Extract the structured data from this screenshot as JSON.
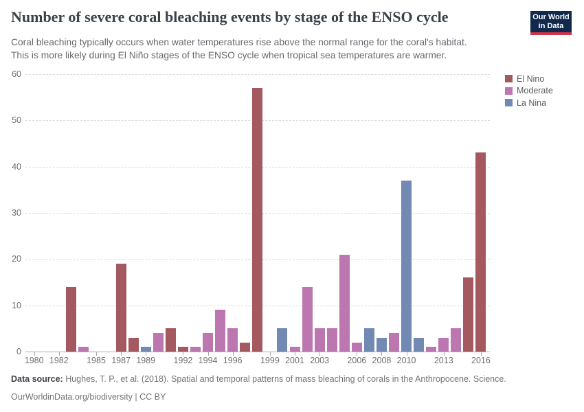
{
  "header": {
    "title": "Number of severe coral bleaching events by stage of the ENSO cycle",
    "subtitle_line1": "Coral bleaching typically occurs when water temperatures rise above the normal range for the coral's habitat.",
    "subtitle_line2": "This is more likely during El Niño stages of the ENSO cycle when tropical sea temperatures are warmer."
  },
  "logo": {
    "line1": "Our World",
    "line2": "in Data",
    "bg_color": "#12294E",
    "accent_color": "#D1334A"
  },
  "legend": {
    "items": [
      {
        "label": "El Nino",
        "color": "#A4585F"
      },
      {
        "label": "Moderate",
        "color": "#BC76B0"
      },
      {
        "label": "La Nina",
        "color": "#7289B3"
      }
    ]
  },
  "chart_data": {
    "type": "bar",
    "title": "Number of severe coral bleaching events by stage of the ENSO cycle",
    "xlabel": "",
    "ylabel": "",
    "ylim": [
      0,
      60
    ],
    "yticks": [
      0,
      10,
      20,
      30,
      40,
      50,
      60
    ],
    "x_range": [
      1980,
      2016
    ],
    "xtick_labels": [
      1980,
      1982,
      1985,
      1987,
      1989,
      1992,
      1994,
      1996,
      1999,
      2001,
      2003,
      2006,
      2008,
      2010,
      2013,
      2016
    ],
    "grid": "horizontal-dashed",
    "legend_position": "top-right",
    "zero_years": [
      1980,
      1981,
      1982,
      1985,
      1986,
      1999
    ],
    "bars": [
      {
        "year": 1983,
        "value": 14,
        "group": "El Nino"
      },
      {
        "year": 1984,
        "value": 1,
        "group": "Moderate"
      },
      {
        "year": 1987,
        "value": 19,
        "group": "El Nino"
      },
      {
        "year": 1988,
        "value": 3,
        "group": "El Nino"
      },
      {
        "year": 1989,
        "value": 1,
        "group": "La Nina"
      },
      {
        "year": 1990,
        "value": 4,
        "group": "Moderate"
      },
      {
        "year": 1991,
        "value": 5,
        "group": "El Nino"
      },
      {
        "year": 1992,
        "value": 1,
        "group": "El Nino"
      },
      {
        "year": 1993,
        "value": 1,
        "group": "Moderate"
      },
      {
        "year": 1994,
        "value": 4,
        "group": "Moderate"
      },
      {
        "year": 1995,
        "value": 9,
        "group": "Moderate"
      },
      {
        "year": 1996,
        "value": 5,
        "group": "Moderate"
      },
      {
        "year": 1997,
        "value": 2,
        "group": "El Nino"
      },
      {
        "year": 1998,
        "value": 57,
        "group": "El Nino"
      },
      {
        "year": 2000,
        "value": 5,
        "group": "La Nina"
      },
      {
        "year": 2001,
        "value": 1,
        "group": "Moderate"
      },
      {
        "year": 2002,
        "value": 14,
        "group": "Moderate"
      },
      {
        "year": 2003,
        "value": 5,
        "group": "Moderate"
      },
      {
        "year": 2004,
        "value": 5,
        "group": "Moderate"
      },
      {
        "year": 2005,
        "value": 21,
        "group": "Moderate"
      },
      {
        "year": 2006,
        "value": 2,
        "group": "Moderate"
      },
      {
        "year": 2007,
        "value": 5,
        "group": "La Nina"
      },
      {
        "year": 2008,
        "value": 3,
        "group": "La Nina"
      },
      {
        "year": 2009,
        "value": 4,
        "group": "Moderate"
      },
      {
        "year": 2010,
        "value": 37,
        "group": "La Nina"
      },
      {
        "year": 2011,
        "value": 3,
        "group": "La Nina"
      },
      {
        "year": 2012,
        "value": 1,
        "group": "Moderate"
      },
      {
        "year": 2013,
        "value": 3,
        "group": "Moderate"
      },
      {
        "year": 2014,
        "value": 5,
        "group": "Moderate"
      },
      {
        "year": 2015,
        "value": 16,
        "group": "El Nino"
      },
      {
        "year": 2016,
        "value": 43,
        "group": "El Nino"
      }
    ]
  },
  "footer": {
    "source_label": "Data source:",
    "source_text": " Hughes, T. P., et al. (2018). Spatial and temporal patterns of mass bleaching of corals in the Anthropocene. Science.",
    "link": "OurWorldinData.org/biodiversity",
    "separator": " | ",
    "license": "CC BY"
  }
}
